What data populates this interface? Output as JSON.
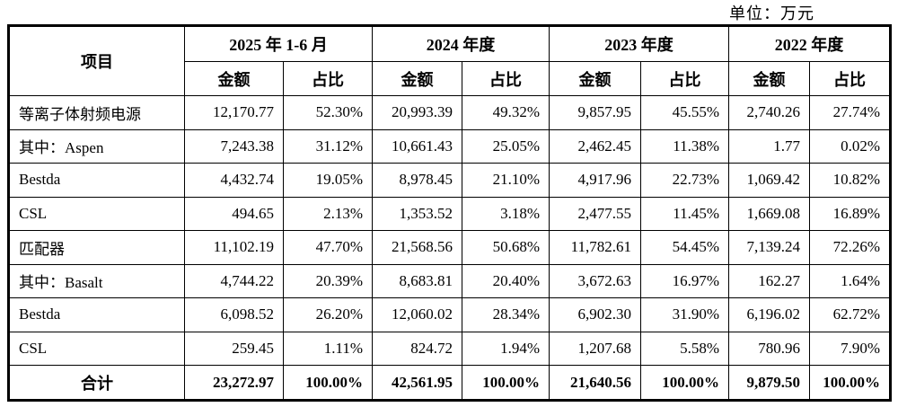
{
  "unit_label": "单位：万元",
  "table": {
    "item_header": "项目",
    "period_headers": [
      "2025 年 1-6 月",
      "2024 年度",
      "2023 年度",
      "2022 年度"
    ],
    "sub_headers": [
      "金额",
      "占比"
    ],
    "rows": [
      {
        "label": "等离子体射频电源",
        "values": [
          "12,170.77",
          "52.30%",
          "20,993.39",
          "49.32%",
          "9,857.95",
          "45.55%",
          "2,740.26",
          "27.74%"
        ]
      },
      {
        "label": "其中：Aspen",
        "values": [
          "7,243.38",
          "31.12%",
          "10,661.43",
          "25.05%",
          "2,462.45",
          "11.38%",
          "1.77",
          "0.02%"
        ]
      },
      {
        "label": "Bestda",
        "values": [
          "4,432.74",
          "19.05%",
          "8,978.45",
          "21.10%",
          "4,917.96",
          "22.73%",
          "1,069.42",
          "10.82%"
        ]
      },
      {
        "label": "CSL",
        "values": [
          "494.65",
          "2.13%",
          "1,353.52",
          "3.18%",
          "2,477.55",
          "11.45%",
          "1,669.08",
          "16.89%"
        ]
      },
      {
        "label": "匹配器",
        "values": [
          "11,102.19",
          "47.70%",
          "21,568.56",
          "50.68%",
          "11,782.61",
          "54.45%",
          "7,139.24",
          "72.26%"
        ]
      },
      {
        "label": "其中：Basalt",
        "values": [
          "4,744.22",
          "20.39%",
          "8,683.81",
          "20.40%",
          "3,672.63",
          "16.97%",
          "162.27",
          "1.64%"
        ]
      },
      {
        "label": "Bestda",
        "values": [
          "6,098.52",
          "26.20%",
          "12,060.02",
          "28.34%",
          "6,902.30",
          "31.90%",
          "6,196.02",
          "62.72%"
        ]
      },
      {
        "label": "CSL",
        "values": [
          "259.45",
          "1.11%",
          "824.72",
          "1.94%",
          "1,207.68",
          "5.58%",
          "780.96",
          "7.90%"
        ]
      }
    ],
    "total_row": {
      "label": "合计",
      "values": [
        "23,272.97",
        "100.00%",
        "42,561.95",
        "100.00%",
        "21,640.56",
        "100.00%",
        "9,879.50",
        "100.00%"
      ]
    }
  }
}
